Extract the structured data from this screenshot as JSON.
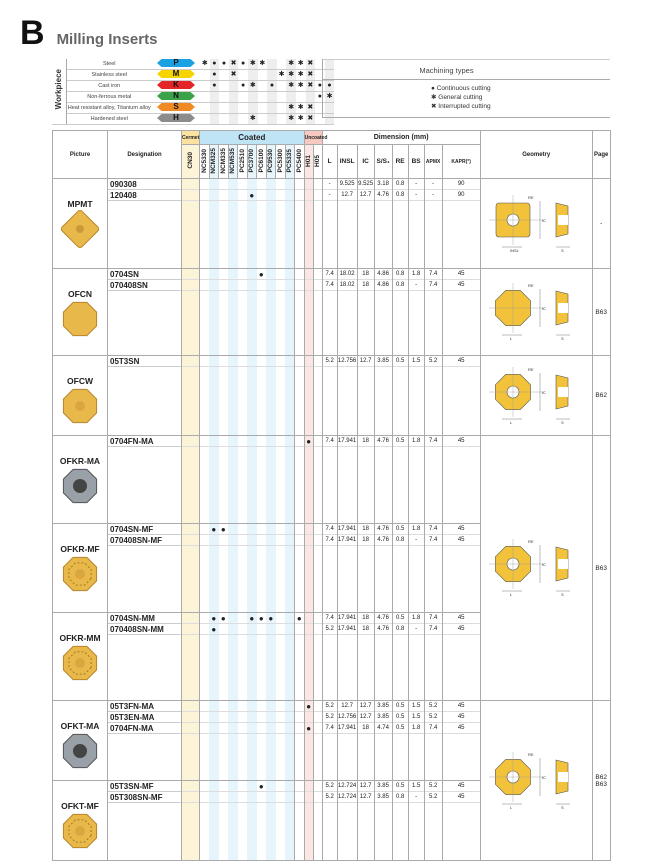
{
  "header": {
    "section_letter": "B",
    "title": "Milling Inserts"
  },
  "workpiece": {
    "label": "Workpiece",
    "materials": [
      {
        "name": "Steel",
        "code": "P",
        "color": "#1ba1e2",
        "marks": [
          "g",
          "c",
          "c",
          "i",
          "c",
          "g",
          "g",
          "",
          "",
          "g",
          "g",
          "i",
          "",
          ""
        ]
      },
      {
        "name": "Stainless steel",
        "code": "M",
        "color": "#f5d400",
        "marks": [
          "",
          "c",
          "",
          "i",
          "",
          "",
          "",
          "",
          "g",
          "g",
          "g",
          "i",
          "",
          ""
        ]
      },
      {
        "name": "Cast iron",
        "code": "K",
        "color": "#e42528",
        "marks": [
          "",
          "c",
          "",
          "",
          "c",
          "g",
          "",
          "c",
          "",
          "g",
          "g",
          "i",
          "c",
          "c"
        ]
      },
      {
        "name": "Non-ferrous metal",
        "code": "N",
        "color": "#3aa34a",
        "marks": [
          "",
          "",
          "",
          "",
          "",
          "",
          "",
          "",
          "",
          "",
          "",
          "",
          "c",
          "g"
        ]
      },
      {
        "name": "Heat resistant alloy, Titanium alloy",
        "code": "S",
        "color": "#f08a24",
        "marks": [
          "",
          "",
          "",
          "",
          "",
          "",
          "",
          "",
          "",
          "g",
          "g",
          "i",
          "",
          ""
        ]
      },
      {
        "name": "Hardened steel",
        "code": "H",
        "color": "#8c8c8c",
        "marks": [
          "",
          "",
          "",
          "",
          "",
          "g",
          "",
          "",
          "",
          "g",
          "g",
          "i",
          "",
          ""
        ]
      }
    ]
  },
  "machining_types": {
    "title": "Machining types",
    "items": [
      {
        "symbol": "c",
        "label": "Continuous cutting"
      },
      {
        "symbol": "g",
        "label": "General cutting"
      },
      {
        "symbol": "i",
        "label": "Interrupted cutting"
      }
    ]
  },
  "symbols": {
    "c": "●",
    "g": "✱",
    "i": "✖"
  },
  "table": {
    "headers": {
      "picture": "Picture",
      "designation": "Designation",
      "cermet": "Cermet",
      "coated": "Coated",
      "uncoated": "Uncoated",
      "dimension": "Dimension (mm)",
      "geometry": "Geometry",
      "page": "Page"
    },
    "grades": [
      "CN30",
      "NC5330",
      "NCM325",
      "NCM335",
      "NCM535",
      "PC2510",
      "PC3700",
      "PC6100",
      "PC9530",
      "PC5300",
      "PC5335",
      "PC5400",
      "H01",
      "H05"
    ],
    "dims": [
      "L",
      "INSL",
      "IC",
      "S/S₁",
      "RE",
      "BS",
      "APMX",
      "KAPR(°)"
    ],
    "groups": [
      {
        "name": "MPMT",
        "shape": "square",
        "rows": [
          {
            "d": "090308",
            "g": [],
            "v": [
              "-",
              "9.525",
              "9.525",
              "3.18",
              "0.8",
              "-",
              "-",
              "90"
            ]
          },
          {
            "d": "120408",
            "g": [
              6
            ],
            "v": [
              "-",
              "12.7",
              "12.7",
              "4.76",
              "0.8",
              "-",
              "-",
              "90"
            ]
          }
        ],
        "geometry": "square",
        "page": "-"
      },
      {
        "name": "OFCN",
        "shape": "oct",
        "rows": [
          {
            "d": "0704SN",
            "g": [
              7
            ],
            "v": [
              "7.4",
              "18.02",
              "18",
              "4.86",
              "0.8",
              "1.8",
              "7.4",
              "45"
            ]
          },
          {
            "d": "070408SN",
            "g": [],
            "v": [
              "7.4",
              "18.02",
              "18",
              "4.86",
              "0.8",
              "-",
              "7.4",
              "45"
            ]
          }
        ],
        "geometry": "oct",
        "page": "B63"
      },
      {
        "name": "OFCW",
        "shape": "octhole",
        "rows": [
          {
            "d": "05T3SN",
            "g": [],
            "v": [
              "5.2",
              "12.756",
              "12.7",
              "3.85",
              "0.5",
              "1.5",
              "5.2",
              "45"
            ]
          }
        ],
        "geometry": "octhole",
        "page": "B62"
      },
      {
        "name": "OFKR-MA",
        "shape": "octgrey",
        "rows": [
          {
            "d": "0704FN-MA",
            "g": [
              12
            ],
            "v": [
              "7.4",
              "17.941",
              "18",
              "4.76",
              "0.5",
              "1.8",
              "7.4",
              "45"
            ]
          }
        ],
        "geometry": "octhole",
        "page": "B63",
        "span": 3
      },
      {
        "name": "OFKR-MF",
        "shape": "octchip",
        "rows": [
          {
            "d": "0704SN-MF",
            "g": [
              2,
              3
            ],
            "v": [
              "7.4",
              "17.941",
              "18",
              "4.76",
              "0.5",
              "1.8",
              "7.4",
              "45"
            ]
          },
          {
            "d": "070408SN-MF",
            "g": [],
            "v": [
              "7.4",
              "17.941",
              "18",
              "4.76",
              "0.8",
              "-",
              "7.4",
              "45"
            ]
          }
        ]
      },
      {
        "name": "OFKR-MM",
        "shape": "octchip",
        "rows": [
          {
            "d": "0704SN-MM",
            "g": [
              2,
              3,
              6,
              7,
              8,
              11
            ],
            "v": [
              "7.4",
              "17.941",
              "18",
              "4.76",
              "0.5",
              "1.8",
              "7.4",
              "45"
            ]
          },
          {
            "d": "070408SN-MM",
            "g": [
              2
            ],
            "v": [
              "5.2",
              "17.941",
              "18",
              "4.76",
              "0.8",
              "-",
              "7.4",
              "45"
            ]
          }
        ]
      },
      {
        "name": "OFKT-MA",
        "shape": "octgrey",
        "rows": [
          {
            "d": "05T3FN-MA",
            "g": [
              12
            ],
            "v": [
              "5.2",
              "12.7",
              "12.7",
              "3.85",
              "0.5",
              "1.5",
              "5.2",
              "45"
            ]
          },
          {
            "d": "05T3EN-MA",
            "g": [],
            "v": [
              "5.2",
              "12.756",
              "12.7",
              "3.85",
              "0.5",
              "1.5",
              "5.2",
              "45"
            ]
          },
          {
            "d": "0704FN-MA",
            "g": [
              12
            ],
            "v": [
              "7.4",
              "17.941",
              "18",
              "4.74",
              "0.5",
              "1.8",
              "7.4",
              "45"
            ]
          }
        ],
        "geometry": "octhole",
        "page": "B62\nB63",
        "span": 2
      },
      {
        "name": "OFKT-MF",
        "shape": "octchip",
        "rows": [
          {
            "d": "05T3SN-MF",
            "g": [
              7
            ],
            "v": [
              "5.2",
              "12.724",
              "12.7",
              "3.85",
              "0.5",
              "1.5",
              "5.2",
              "45"
            ]
          },
          {
            "d": "05T308SN-MF",
            "g": [],
            "v": [
              "5.2",
              "12.724",
              "12.7",
              "3.85",
              "0.8",
              "-",
              "5.2",
              "45"
            ]
          }
        ]
      }
    ]
  },
  "colors": {
    "insert_gold": "#e8b84a",
    "insert_grey": "#9aa0a8"
  }
}
